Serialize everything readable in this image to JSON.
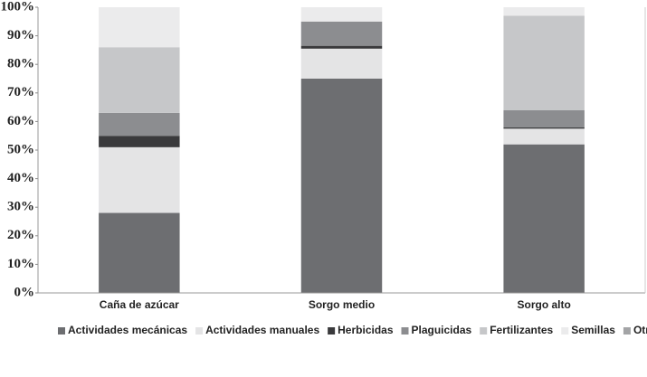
{
  "chart_data": {
    "type": "stacked_bar",
    "categories": [
      "Caña de azúcar",
      "Sorgo medio",
      "Sorgo alto"
    ],
    "series": [
      {
        "name": "Actividades mecánicas",
        "color": "#6d6e71",
        "values": [
          28,
          75,
          52
        ]
      },
      {
        "name": "Actividades manuales",
        "color": "#e4e4e5",
        "values": [
          23,
          10.5,
          5.5
        ]
      },
      {
        "name": "Herbicidas",
        "color": "#3a3a3c",
        "values": [
          4,
          1,
          0.5
        ]
      },
      {
        "name": "Plaguicidas",
        "color": "#8c8d90",
        "values": [
          8,
          8.5,
          6
        ]
      },
      {
        "name": "Fertilizantes",
        "color": "#c6c7c9",
        "values": [
          23,
          0,
          33
        ]
      },
      {
        "name": "Semillas",
        "color": "#ebebec",
        "values": [
          14,
          5,
          3
        ]
      },
      {
        "name": "Otros",
        "color": "#a3a4a6",
        "values": [
          0,
          0,
          0
        ]
      }
    ],
    "ylim": [
      0,
      100
    ],
    "yticks": [
      {
        "value": 0,
        "label": "0%"
      },
      {
        "value": 10,
        "label": "10%"
      },
      {
        "value": 20,
        "label": "20%"
      },
      {
        "value": 30,
        "label": "30%"
      },
      {
        "value": 40,
        "label": "40%"
      },
      {
        "value": 50,
        "label": "50%"
      },
      {
        "value": 60,
        "label": "60%"
      },
      {
        "value": 70,
        "label": "70%"
      },
      {
        "value": 80,
        "label": "80%"
      },
      {
        "value": 90,
        "label": "90%"
      },
      {
        "value": 100,
        "label": "100%"
      }
    ],
    "grid": false,
    "legend": "bottom"
  }
}
